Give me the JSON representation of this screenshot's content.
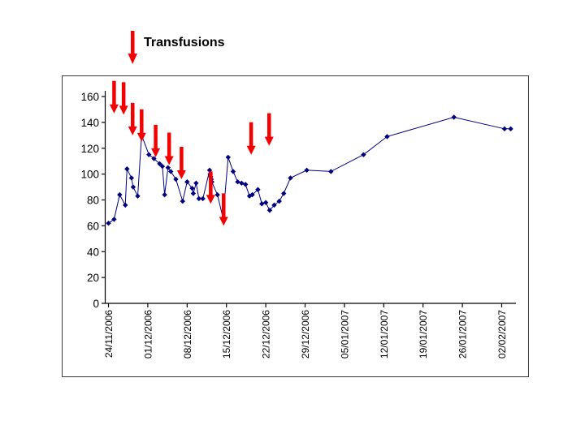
{
  "legend": {
    "label": "Transfusions"
  },
  "chart_data": {
    "type": "line",
    "title": "",
    "legend_label": "Transfusions",
    "line_color": "#000080",
    "marker": "diamond",
    "arrow_color": "#f40000",
    "y_axis": {
      "min": 0,
      "max": 160,
      "step": 20,
      "tick_labels": [
        "0",
        "20",
        "40",
        "60",
        "80",
        "100",
        "120",
        "140",
        "160"
      ],
      "grid": false
    },
    "x_axis": {
      "days_per_tick": 7,
      "tick_labels": [
        "24/11/2006",
        "01/12/2006",
        "08/12/2006",
        "15/12/2006",
        "22/12/2006",
        "29/12/2006",
        "05/01/2007",
        "12/01/2007",
        "19/01/2007",
        "26/01/2007",
        "02/02/2007"
      ]
    },
    "points": [
      [
        0,
        62
      ],
      [
        1,
        65
      ],
      [
        2,
        84
      ],
      [
        3,
        76
      ],
      [
        3.3,
        104
      ],
      [
        4.1,
        97
      ],
      [
        4.4,
        90
      ],
      [
        5.2,
        83
      ],
      [
        5.9,
        130
      ],
      [
        7.2,
        115
      ],
      [
        8.1,
        112
      ],
      [
        9.1,
        108
      ],
      [
        9.6,
        106
      ],
      [
        10,
        84
      ],
      [
        10.6,
        105
      ],
      [
        11.1,
        102
      ],
      [
        12,
        96
      ],
      [
        13.2,
        79
      ],
      [
        14,
        94
      ],
      [
        14.9,
        89
      ],
      [
        15.1,
        85
      ],
      [
        15.6,
        93
      ],
      [
        16.1,
        81
      ],
      [
        16.8,
        81
      ],
      [
        18,
        103
      ],
      [
        18.1,
        100
      ],
      [
        18.2,
        98
      ],
      [
        18.3,
        96
      ],
      [
        18.4,
        94
      ],
      [
        19.4,
        84
      ],
      [
        20.4,
        66
      ],
      [
        21.3,
        113
      ],
      [
        22.2,
        102
      ],
      [
        23,
        94
      ],
      [
        23.7,
        93
      ],
      [
        24.4,
        92
      ],
      [
        25.1,
        83
      ],
      [
        25.6,
        84
      ],
      [
        26.6,
        88
      ],
      [
        27.3,
        77
      ],
      [
        28,
        78
      ],
      [
        28.7,
        72
      ],
      [
        29.5,
        76
      ],
      [
        30.4,
        79
      ],
      [
        31.2,
        85
      ],
      [
        32.4,
        97
      ],
      [
        35.3,
        103
      ],
      [
        39.6,
        102
      ],
      [
        45.4,
        115
      ],
      [
        49.6,
        129
      ],
      [
        61.5,
        144
      ],
      [
        70.5,
        135
      ],
      [
        71.6,
        135
      ]
    ],
    "transfusions": [
      [
        1.0,
        147
      ],
      [
        2.7,
        146
      ],
      [
        4.3,
        130
      ],
      [
        5.9,
        125
      ],
      [
        8.4,
        113
      ],
      [
        10.8,
        107
      ],
      [
        13.0,
        96
      ],
      [
        18.2,
        77
      ],
      [
        20.5,
        60
      ],
      [
        25.4,
        115
      ],
      [
        28.6,
        122
      ]
    ]
  }
}
